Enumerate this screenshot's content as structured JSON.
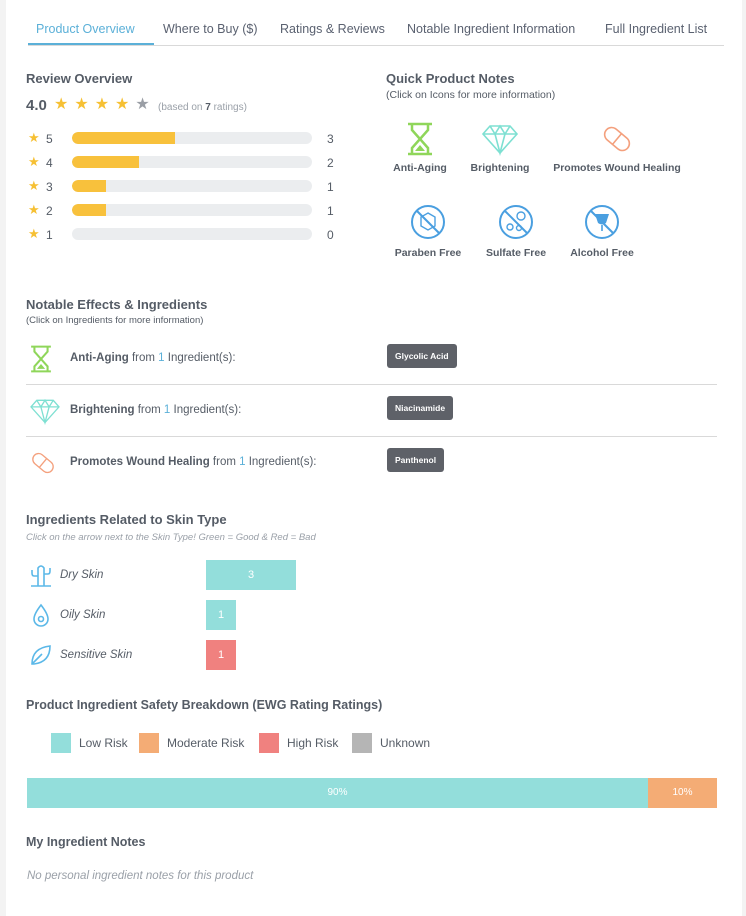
{
  "tabs": [
    {
      "label": "Product Overview",
      "active": true
    },
    {
      "label": "Where to Buy ($)"
    },
    {
      "label": "Ratings & Reviews"
    },
    {
      "label": "Notable Ingredient Information"
    },
    {
      "label": "Full Ingredient List"
    }
  ],
  "review": {
    "title": "Review Overview",
    "score": "4.0",
    "stars_filled": 4,
    "stars_total": 5,
    "based_prefix": "(based on ",
    "ratings_count": "7",
    "based_suffix": " ratings)",
    "breakdown": [
      {
        "stars": "5",
        "count": "3",
        "fraction": 0.43
      },
      {
        "stars": "4",
        "count": "2",
        "fraction": 0.28
      },
      {
        "stars": "3",
        "count": "1",
        "fraction": 0.14
      },
      {
        "stars": "2",
        "count": "1",
        "fraction": 0.14
      },
      {
        "stars": "1",
        "count": "0",
        "fraction": 0
      }
    ],
    "colors": {
      "star": "#f6c033",
      "bar": "#f8c13c"
    }
  },
  "quick_notes": {
    "title": "Quick Product Notes",
    "subtitle": "(Click on Icons for more information)",
    "items": [
      {
        "label": "Anti-Aging",
        "icon": "hourglass-icon"
      },
      {
        "label": "Brightening",
        "icon": "diamond-icon"
      },
      {
        "label": "Promotes Wound Healing",
        "icon": "bandage-icon"
      },
      {
        "label": "Paraben Free",
        "icon": "paraben-free-icon"
      },
      {
        "label": "Sulfate Free",
        "icon": "sulfate-free-icon"
      },
      {
        "label": "Alcohol Free",
        "icon": "alcohol-free-icon"
      }
    ]
  },
  "effects": {
    "title": "Notable Effects & Ingredients",
    "subtitle": "(Click on Ingredients for more information)",
    "rows": [
      {
        "effect": "Anti-Aging",
        "from": " from ",
        "count": "1",
        "suffix": " Ingredient(s):",
        "ingredient": "Glycolic Acid",
        "icon": "hourglass-icon"
      },
      {
        "effect": "Brightening",
        "from": " from ",
        "count": "1",
        "suffix": " Ingredient(s):",
        "ingredient": "Niacinamide",
        "icon": "diamond-icon"
      },
      {
        "effect": "Promotes Wound Healing",
        "from": " from ",
        "count": "1",
        "suffix": " Ingredient(s):",
        "ingredient": "Panthenol",
        "icon": "bandage-icon"
      }
    ]
  },
  "skin_types": {
    "title": "Ingredients Related to Skin Type",
    "hint": "Click on the arrow next to the Skin Type! Green = Good & Red = Bad",
    "rows": [
      {
        "label": "Dry Skin",
        "value": "3",
        "color": "#93dedb",
        "icon": "cactus-icon"
      },
      {
        "label": "Oily Skin",
        "value": "1",
        "color": "#93dedb",
        "icon": "oil-drop-icon"
      },
      {
        "label": "Sensitive Skin",
        "value": "1",
        "color": "#f0817f",
        "icon": "leaf-icon"
      }
    ]
  },
  "safety": {
    "title": "Product Ingredient Safety Breakdown (EWG Rating Ratings)",
    "legend": [
      {
        "label": "Low Risk",
        "color": "#93dedb"
      },
      {
        "label": "Moderate Risk",
        "color": "#f4ac75"
      },
      {
        "label": "High Risk",
        "color": "#f0817f"
      },
      {
        "label": "Unknown",
        "color": "#b5b5b5"
      }
    ],
    "segments": [
      {
        "label": "90%",
        "percent": 90,
        "color": "#93dedb"
      },
      {
        "label": "10%",
        "percent": 10,
        "color": "#f4ac75"
      }
    ]
  },
  "notes": {
    "title": "My Ingredient Notes",
    "empty": "No personal ingredient notes for this product"
  },
  "colors": {
    "accent": "#5bb0d8",
    "text": "#555c66",
    "badge": "#5e6168"
  }
}
